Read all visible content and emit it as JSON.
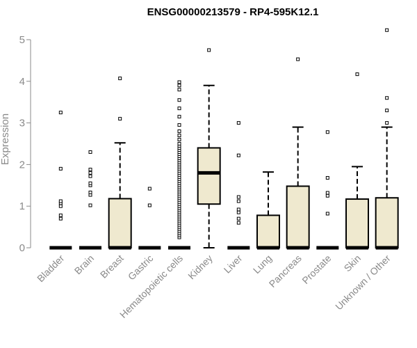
{
  "chart_data": {
    "type": "box",
    "title": "ENSG00000213579 - RP4-595K12.1",
    "ylabel": "Expression",
    "ylim": [
      0,
      5.3
    ],
    "yticks": [
      0,
      1,
      2,
      3,
      4,
      5
    ],
    "categories": [
      "Bladder",
      "Brain",
      "Breast",
      "Gastric",
      "Hematopoietic cells",
      "Kidney",
      "Liver",
      "Lung",
      "Pancreas",
      "Prostate",
      "Skin",
      "Unknown / Other"
    ],
    "box_fill": "#efe9cf",
    "boxes": [
      {
        "category": "Bladder",
        "q1": 0,
        "median": 0,
        "q3": 0,
        "whisker_low": 0,
        "whisker_high": 0,
        "outliers": [
          0.7,
          0.78,
          1.0,
          1.07,
          1.12,
          1.9,
          3.25
        ]
      },
      {
        "category": "Brain",
        "q1": 0,
        "median": 0,
        "q3": 0,
        "whisker_low": 0,
        "whisker_high": 0,
        "outliers": [
          1.02,
          1.27,
          1.33,
          1.5,
          1.55,
          1.72,
          1.8,
          1.88,
          2.3
        ]
      },
      {
        "category": "Breast",
        "q1": 0,
        "median": 0,
        "q3": 1.18,
        "whisker_low": 0,
        "whisker_high": 2.52,
        "outliers": [
          3.1,
          4.07
        ]
      },
      {
        "category": "Gastric",
        "q1": 0,
        "median": 0,
        "q3": 0,
        "whisker_low": 0,
        "whisker_high": 0,
        "outliers": [
          1.02,
          1.42
        ]
      },
      {
        "category": "Hematopoietic cells",
        "q1": 0,
        "median": 0,
        "q3": 0,
        "whisker_low": 0,
        "whisker_high": 0,
        "outliers": [
          0.25,
          0.3,
          0.35,
          0.4,
          0.45,
          0.5,
          0.55,
          0.6,
          0.65,
          0.7,
          0.75,
          0.8,
          0.85,
          0.9,
          0.95,
          1.0,
          1.05,
          1.1,
          1.15,
          1.2,
          1.25,
          1.3,
          1.35,
          1.4,
          1.45,
          1.5,
          1.55,
          1.6,
          1.65,
          1.7,
          1.75,
          1.8,
          1.85,
          1.9,
          1.95,
          2.0,
          2.05,
          2.1,
          2.15,
          2.2,
          2.25,
          2.3,
          2.35,
          2.4,
          2.45,
          2.5,
          2.6,
          2.7,
          2.8,
          2.95,
          3.15,
          3.35,
          3.55,
          3.8,
          3.9,
          3.98
        ]
      },
      {
        "category": "Kidney",
        "q1": 1.05,
        "median": 1.8,
        "q3": 2.4,
        "whisker_low": 0,
        "whisker_high": 3.9,
        "outliers": [
          4.75
        ]
      },
      {
        "category": "Liver",
        "q1": 0,
        "median": 0,
        "q3": 0,
        "whisker_low": 0,
        "whisker_high": 0,
        "outliers": [
          0.6,
          0.7,
          0.85,
          0.92,
          1.12,
          1.22,
          2.22,
          3.0
        ]
      },
      {
        "category": "Lung",
        "q1": 0,
        "median": 0,
        "q3": 0.78,
        "whisker_low": 0,
        "whisker_high": 1.82,
        "outliers": []
      },
      {
        "category": "Pancreas",
        "q1": 0,
        "median": 0,
        "q3": 1.48,
        "whisker_low": 0,
        "whisker_high": 2.9,
        "outliers": [
          4.53
        ]
      },
      {
        "category": "Prostate",
        "q1": 0,
        "median": 0,
        "q3": 0,
        "whisker_low": 0,
        "whisker_high": 0,
        "outliers": [
          0.82,
          1.25,
          1.32,
          1.68,
          2.78
        ]
      },
      {
        "category": "Skin",
        "q1": 0,
        "median": 0,
        "q3": 1.17,
        "whisker_low": 0,
        "whisker_high": 1.95,
        "outliers": [
          4.17
        ]
      },
      {
        "category": "Unknown / Other",
        "q1": 0,
        "median": 0,
        "q3": 1.2,
        "whisker_low": 0,
        "whisker_high": 2.9,
        "outliers": [
          3.0,
          3.3,
          3.6,
          5.23
        ]
      }
    ]
  }
}
